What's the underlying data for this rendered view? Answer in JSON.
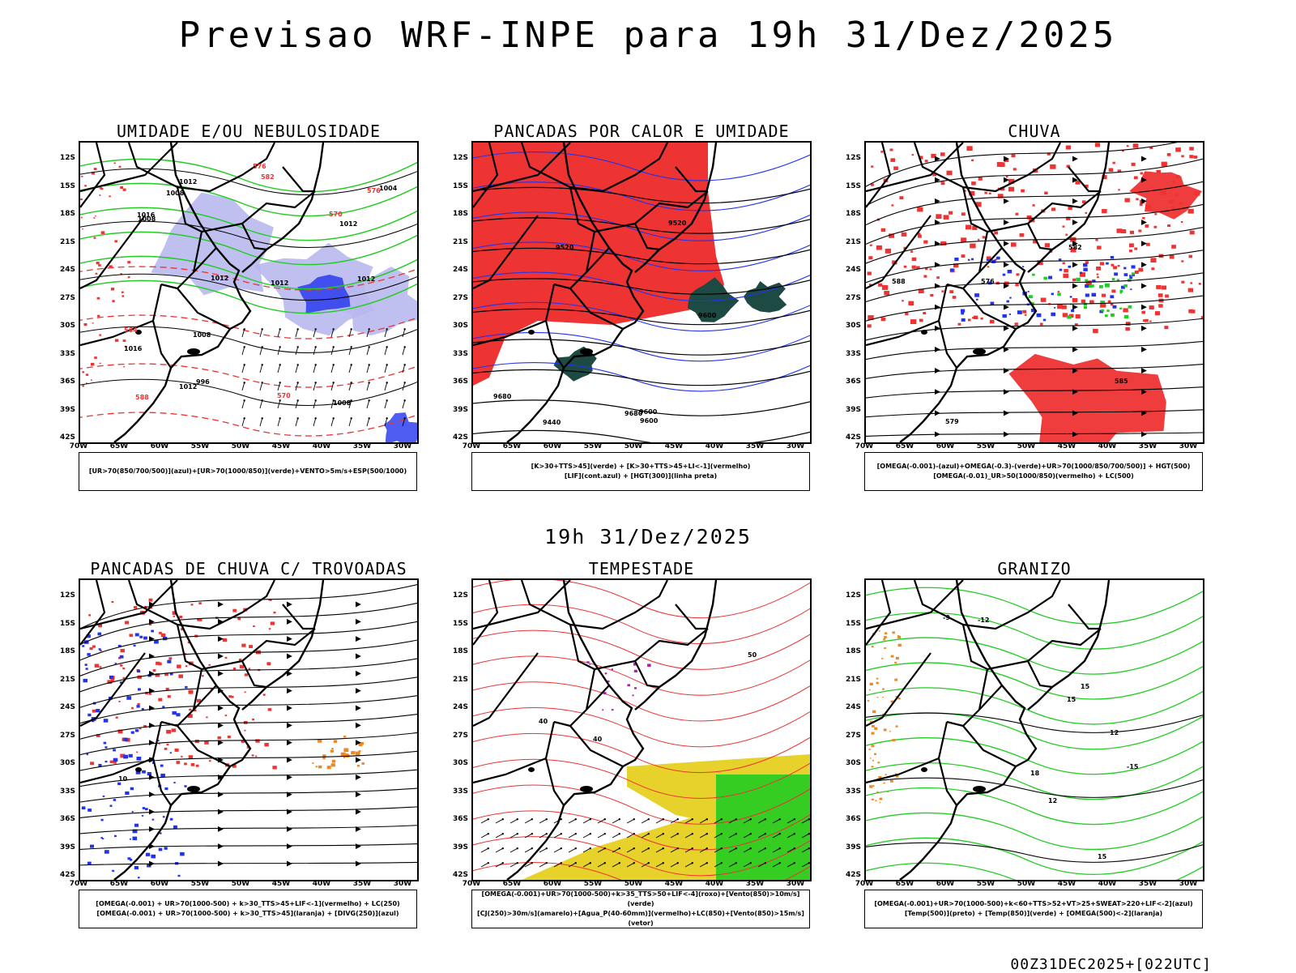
{
  "title": "Previsao WRF-INPE  para 19h 31/Dez/2025",
  "mid_title": "19h 31/Dez/2025",
  "footer": "00Z31DEC2025+[022UTC]",
  "lat_labels": [
    "12S",
    "15S",
    "18S",
    "21S",
    "24S",
    "27S",
    "30S",
    "33S",
    "36S",
    "39S",
    "42S"
  ],
  "lon_labels": [
    "70W",
    "65W",
    "60W",
    "55W",
    "50W",
    "45W",
    "40W",
    "35W",
    "30W"
  ],
  "colors": {
    "red": "#ee3333",
    "green": "#22cc22",
    "blue": "#2233ee",
    "lavender": "#b8b8ee",
    "darkteal": "#1e4a44",
    "yellow": "#e6d22a",
    "orange": "#ee8822",
    "purple": "#aa22aa"
  },
  "panels": [
    {
      "title": "UMIDADE E/OU NEBULOSIDADE",
      "legend": [
        "[UR>70(850/700/500)](azul)+[UR>70(1000/850)](verde)+VENTO>5m/s+ESP(500/1000)"
      ],
      "labels": [
        "1008",
        "1012",
        "1012",
        "1008",
        "1016",
        "1008",
        "1012",
        "1012",
        "1008",
        "576",
        "570",
        "1012",
        "1016",
        "1004",
        "996",
        "582",
        "588",
        "1012",
        "576",
        "570",
        "564"
      ]
    },
    {
      "title": "PANCADAS POR CALOR E UMIDADE",
      "legend": [
        "[K>30+TTS>45](verde)  +  [K>30+TTS>45+LI<-1](vermelho)",
        "[LIF](cont.azul)  +  [HGT(300)](linha preta)"
      ],
      "labels": [
        "9600",
        "9680",
        "9680",
        "9600",
        "9600",
        "9520",
        "9520",
        "9440"
      ]
    },
    {
      "title": "CHUVA",
      "legend": [
        "[OMEGA(-0.001)-(azul)+OMEGA(-0.3)-(verde)+UR>70(1000/850/700/500)]  +  HGT(500)",
        "[OMEGA(-0.01)_UR>50(1000/850)(vermelho)  +  LC(500)"
      ],
      "labels": [
        "585",
        "588",
        "582",
        "579",
        "576"
      ]
    },
    {
      "title": "PANCADAS DE CHUVA C/ TROVOADAS",
      "legend": [
        "[OMEGA(-0.001)  +  UR>70(1000-500)  +  k>30_TTS>45+LIF<-1](vermelho)  +  LC(250)",
        "[OMEGA(-0.001)  +  UR>70(1000-500)  +  k>30_TTS>45](laranja)  +  [DIVG(250)](azul)"
      ],
      "labels": [
        "10"
      ]
    },
    {
      "title": "TEMPESTADE",
      "legend": [
        "[OMEGA(-0.001)+UR>70(1000-500)+k>35_TTS>50+LIF<-4](roxo)+[Vento(850)>10m/s](verde)",
        "[CJ(250)>30m/s](amarelo)+[Agua_P(40-60mm)](vermelho)+LC(850)+[Vento(850)>15m/s](vetor)"
      ],
      "labels": [
        "40",
        "40",
        "50"
      ]
    },
    {
      "title": "GRANIZO",
      "legend": [
        "[OMEGA(-0.001)+UR>70(1000-500)+k<60+TTS>52+VT>25+SWEAT>220+LIF<-2](azul)",
        "[Temp(500)](preto)  +  [Temp(850)](verde)  +  [OMEGA(500)<-2](laranja)"
      ],
      "labels": [
        "15",
        "15",
        "18",
        "-12",
        "-9",
        "12",
        "15",
        "12",
        "-15"
      ]
    }
  ]
}
